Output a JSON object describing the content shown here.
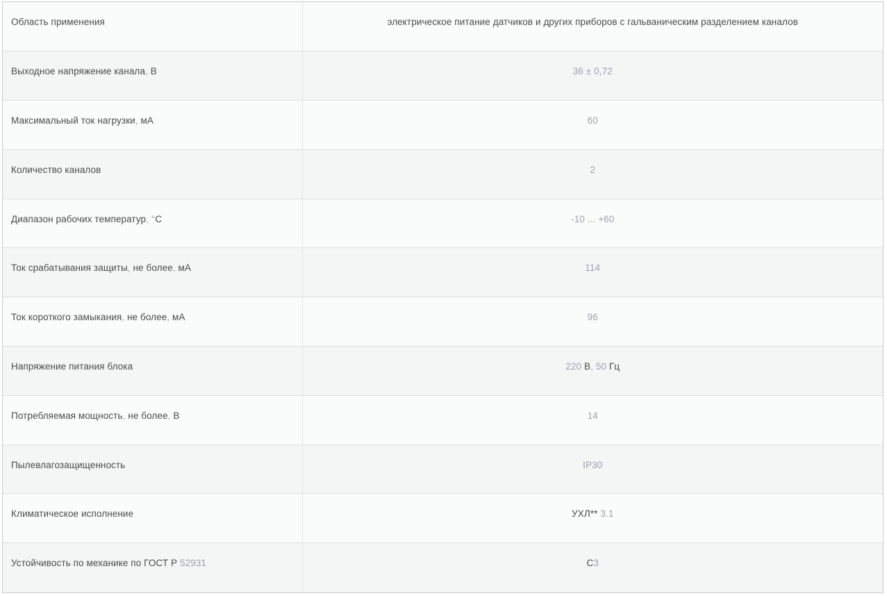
{
  "spec_table": {
    "rows": [
      {
        "label": "Область применения",
        "value": "электрическое питание датчиков и других приборов с гальваническим разделением каналов"
      },
      {
        "label": "Выходное напряжение канала, В",
        "value": "36 ± 0,72"
      },
      {
        "label": "Максимальный ток нагрузки, мА",
        "value": "60"
      },
      {
        "label": "Количество каналов",
        "value": "2"
      },
      {
        "label": "Диапазон рабочих температур, °С",
        "value": "-10 ... +60"
      },
      {
        "label": "Ток срабатывания защиты, не более, мА",
        "value": "114"
      },
      {
        "label": "Ток короткого замыкания, не более, мА",
        "value": "96"
      },
      {
        "label": "Напряжение питания блока",
        "value": "220 В, 50 Гц"
      },
      {
        "label": "Потребляемая мощность, не более, В",
        "value": "14"
      },
      {
        "label": "Пылевлагозащищенность",
        "value": "IP30"
      },
      {
        "label": "Климатическое исполнение",
        "value": "УХЛ** 3.1"
      },
      {
        "label": "Устойчивость по механике по ГОСТ Р 52931",
        "value": "С3"
      }
    ],
    "colors": {
      "row_odd_bg": "#fafbfb",
      "row_even_bg": "#f4f5f5",
      "inner_border": "#dfdfdf",
      "outer_border": "#c9c9c9",
      "text_dark": "#4a4a4a",
      "text_light": "#9ca1ab"
    }
  }
}
